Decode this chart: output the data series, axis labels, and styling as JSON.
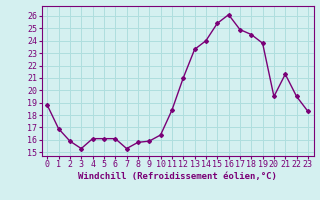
{
  "x": [
    0,
    1,
    2,
    3,
    4,
    5,
    6,
    7,
    8,
    9,
    10,
    11,
    12,
    13,
    14,
    15,
    16,
    17,
    18,
    19,
    20,
    21,
    22,
    23
  ],
  "y": [
    18.8,
    16.9,
    15.9,
    15.3,
    16.1,
    16.1,
    16.1,
    15.3,
    15.8,
    15.9,
    16.4,
    18.4,
    21.0,
    23.3,
    24.0,
    25.4,
    26.1,
    24.9,
    24.5,
    23.8,
    19.5,
    21.3,
    19.5,
    18.3
  ],
  "line_color": "#7a0077",
  "marker": "D",
  "marker_size": 2.0,
  "xlabel": "Windchill (Refroidissement éolien,°C)",
  "xlabel_fontsize": 6.5,
  "ylabel_ticks": [
    15,
    16,
    17,
    18,
    19,
    20,
    21,
    22,
    23,
    24,
    25,
    26
  ],
  "ylim": [
    14.7,
    26.8
  ],
  "xlim": [
    -0.5,
    23.5
  ],
  "background_color": "#d4f0f0",
  "grid_color": "#aedede",
  "tick_fontsize": 6.0,
  "linewidth": 1.0
}
